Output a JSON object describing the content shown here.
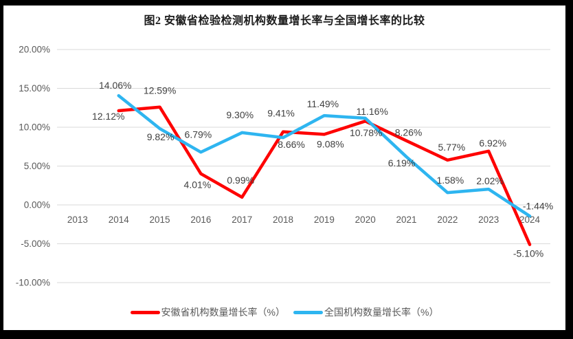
{
  "window": {
    "frame_color": "#000000",
    "background": "#ffffff"
  },
  "chart_data": {
    "type": "line",
    "title": "图2 安徽省检验检测机构数量增长率与全国增长率的比较",
    "categories": [
      "2013",
      "2014",
      "2015",
      "2016",
      "2017",
      "2018",
      "2019",
      "2020",
      "2021",
      "2022",
      "2023",
      "2024"
    ],
    "series": [
      {
        "name": "安徽省机构数量增长率（%）",
        "color": "#fe0000",
        "values": [
          null,
          12.12,
          12.59,
          4.01,
          0.99,
          9.41,
          9.08,
          10.78,
          8.26,
          5.77,
          6.92,
          -5.1
        ],
        "labels": [
          null,
          "12.12%",
          "12.59%",
          "4.01%",
          "0.99%",
          "9.41%",
          "9.08%",
          "10.78%",
          "8.26%",
          "5.77%",
          "6.92%",
          "-5.10%"
        ],
        "label_offsets": [
          [
            0,
            0
          ],
          [
            -15,
            8
          ],
          [
            0,
            -24
          ],
          [
            -5,
            16
          ],
          [
            -2,
            -25
          ],
          [
            -3,
            -27
          ],
          [
            9,
            14
          ],
          [
            1,
            17
          ],
          [
            3,
            -12
          ],
          [
            6,
            -19
          ],
          [
            6,
            -12
          ],
          [
            -2,
            13
          ]
        ]
      },
      {
        "name": "全国机构数量增长率（%）",
        "color": "#2eb5f0",
        "values": [
          null,
          14.06,
          9.82,
          6.79,
          9.3,
          8.66,
          11.49,
          11.16,
          6.19,
          1.58,
          2.02,
          -1.44
        ],
        "labels": [
          null,
          "14.06%",
          "9.82%",
          "6.79%",
          "9.30%",
          "8.66%",
          "11.49%",
          "11.16%",
          "6.19%",
          "1.58%",
          "2.02%",
          "-1.44%"
        ],
        "label_offsets": [
          [
            0,
            0
          ],
          [
            -5,
            -15
          ],
          [
            1,
            12
          ],
          [
            -4,
            -26
          ],
          [
            -3,
            -26
          ],
          [
            12,
            10
          ],
          [
            -2,
            -17
          ],
          [
            10,
            -10
          ],
          [
            -7,
            9
          ],
          [
            4,
            -18
          ],
          [
            2,
            -12
          ],
          [
            12,
            -15
          ]
        ]
      }
    ],
    "y_axis": {
      "ticks": [
        "20.00%",
        "15.00%",
        "10.00%",
        "5.00%",
        "0.00%",
        "-5.00%",
        "-10.00%"
      ],
      "tick_values": [
        20,
        15,
        10,
        5,
        0,
        -5,
        -10
      ],
      "min": -10,
      "max": 20
    },
    "xlabel": "",
    "ylabel": "",
    "grid": true,
    "legend_position": "bottom",
    "grid_color": "#d9d9d9",
    "axis_text_color": "#595959",
    "label_color": "#404040"
  }
}
